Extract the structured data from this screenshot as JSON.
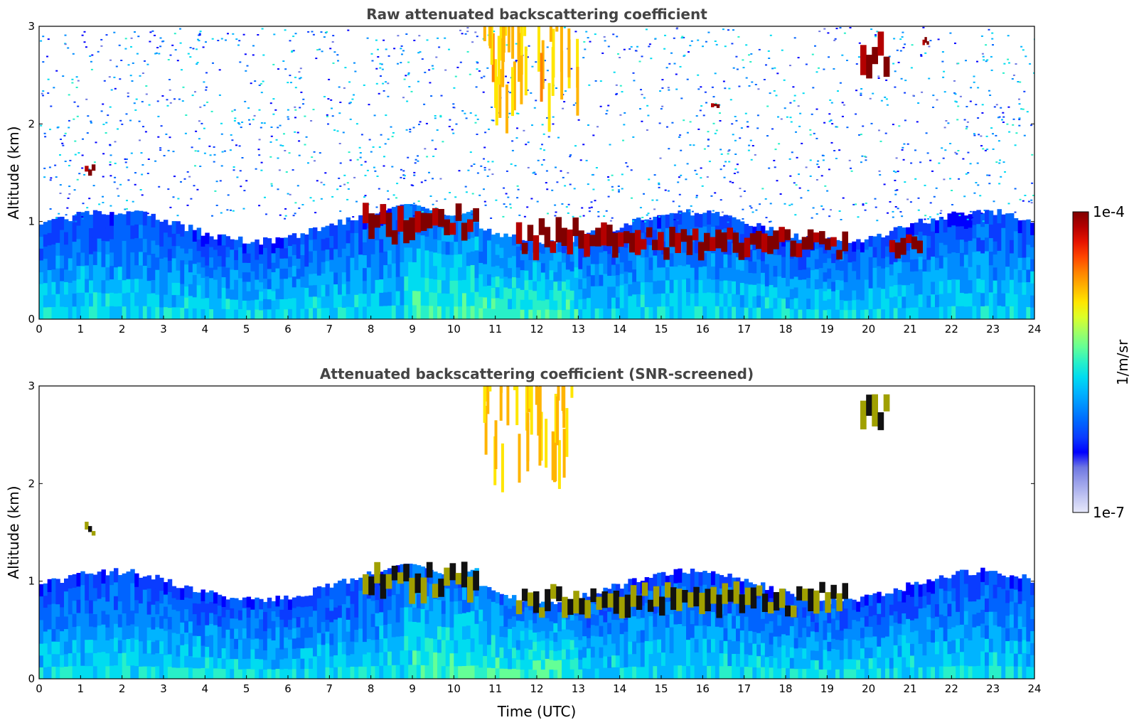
{
  "chart_data": [
    {
      "type": "heatmap",
      "title": "Raw attenuated backscattering coefficient",
      "xlabel": "",
      "ylabel": "Altitude (km)",
      "xlim": [
        0,
        24
      ],
      "ylim": [
        0,
        3
      ],
      "xticks": [
        "0",
        "1",
        "2",
        "3",
        "4",
        "5",
        "6",
        "7",
        "8",
        "9",
        "10",
        "11",
        "12",
        "13",
        "14",
        "15",
        "16",
        "17",
        "18",
        "19",
        "20",
        "21",
        "22",
        "23",
        "24"
      ],
      "yticks": [
        "0",
        "1",
        "2",
        "3"
      ],
      "screened": false,
      "background": "noisy",
      "features": [
        {
          "label": "cloud base layer",
          "x": [
            7.8,
            10.6
          ],
          "y": [
            0.75,
            1.2
          ]
        },
        {
          "label": "cloud base layer",
          "x": [
            11.5,
            14.5
          ],
          "y": [
            0.6,
            1.05
          ]
        },
        {
          "label": "cloud base layer",
          "x": [
            14.5,
            19.5
          ],
          "y": [
            0.6,
            0.95
          ]
        },
        {
          "label": "cloud base layer",
          "x": [
            20.5,
            21.3
          ],
          "y": [
            0.6,
            0.9
          ]
        },
        {
          "label": "elevated cloud",
          "x": [
            1.1,
            1.35
          ],
          "y": [
            1.45,
            1.6
          ]
        },
        {
          "label": "virga",
          "x": [
            10.7,
            13.0
          ],
          "y": [
            1.9,
            3.0
          ]
        },
        {
          "label": "elevated cloud",
          "x": [
            19.8,
            20.5
          ],
          "y": [
            2.4,
            2.95
          ]
        },
        {
          "label": "elevated cloud",
          "x": [
            16.2,
            16.4
          ],
          "y": [
            2.15,
            2.22
          ]
        },
        {
          "label": "elevated cloud",
          "x": [
            21.3,
            21.45
          ],
          "y": [
            2.8,
            2.9
          ]
        }
      ]
    },
    {
      "type": "heatmap",
      "title": "Attenuated backscattering coefficient (SNR-screened)",
      "xlabel": "Time (UTC)",
      "ylabel": "Altitude (km)",
      "xlim": [
        0,
        24
      ],
      "ylim": [
        0,
        3
      ],
      "xticks": [
        "0",
        "1",
        "2",
        "3",
        "4",
        "5",
        "6",
        "7",
        "8",
        "9",
        "10",
        "11",
        "12",
        "13",
        "14",
        "15",
        "16",
        "17",
        "18",
        "19",
        "20",
        "21",
        "22",
        "23",
        "24"
      ],
      "yticks": [
        "0",
        "1",
        "2",
        "3"
      ],
      "screened": true,
      "background": "white",
      "features": [
        {
          "label": "cloud base layer",
          "x": [
            7.8,
            10.6
          ],
          "y": [
            0.75,
            1.2
          ]
        },
        {
          "label": "cloud base layer",
          "x": [
            11.5,
            19.5
          ],
          "y": [
            0.6,
            1.0
          ]
        },
        {
          "label": "elevated cloud",
          "x": [
            1.1,
            1.35
          ],
          "y": [
            1.45,
            1.62
          ]
        },
        {
          "label": "virga",
          "x": [
            10.7,
            13.0
          ],
          "y": [
            1.9,
            3.0
          ]
        },
        {
          "label": "elevated cloud",
          "x": [
            19.8,
            20.5
          ],
          "y": [
            2.4,
            2.95
          ]
        }
      ]
    }
  ],
  "colorbar": {
    "label": "1/m/sr",
    "max_label": "1e-4",
    "min_label": "1e-7",
    "scale": "log",
    "colors": [
      "#e6e8fa",
      "#c2c6f2",
      "#9aa0ea",
      "#6e77e2",
      "#0000ff",
      "#0a3cff",
      "#0064ff",
      "#008cff",
      "#00b4ff",
      "#00dcf0",
      "#28f0c8",
      "#64ff96",
      "#a0ff64",
      "#dcff28",
      "#ffe600",
      "#ffb400",
      "#ff8200",
      "#ff4600",
      "#e61400",
      "#b40000",
      "#800000"
    ]
  }
}
